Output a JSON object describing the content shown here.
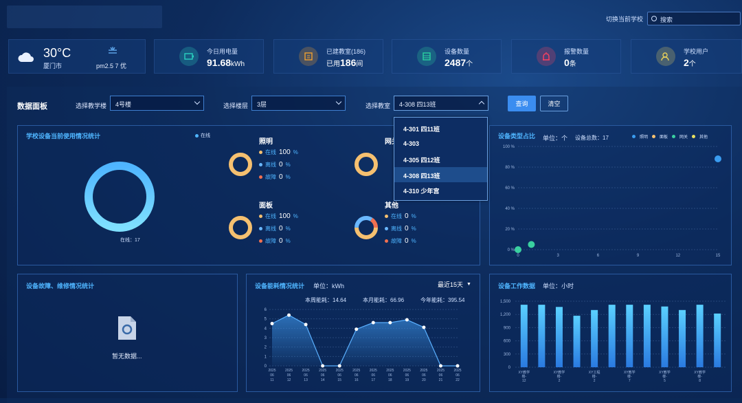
{
  "header": {
    "switch_label": "切换当前学校",
    "search_placeholder": "搜索"
  },
  "weather": {
    "temp": "30°C",
    "city": "厦门市",
    "aqi": "pm2.5 7 优",
    "icon": "cloud-icon",
    "aqi_icon": "air-icon"
  },
  "kpis": [
    {
      "label": "今日用电量",
      "value": "91.68",
      "unit": "kWh",
      "icon": "battery-icon",
      "color": "#2ad1c0"
    },
    {
      "label": "已建教室(186)",
      "value": "186",
      "prefix": "已用",
      "unit": "间",
      "icon": "classroom-icon",
      "color": "#f0a030"
    },
    {
      "label": "设备数量",
      "value": "2487",
      "unit": "个",
      "icon": "device-icon",
      "color": "#2ad1a0"
    },
    {
      "label": "报警数量",
      "value": "0",
      "unit": "条",
      "icon": "alarm-icon",
      "color": "#ff4060"
    },
    {
      "label": "学校用户",
      "value": "2",
      "unit": "个",
      "icon": "users-icon",
      "color": "#e8d05a"
    }
  ],
  "filters": {
    "title": "数据面板",
    "building_label": "选择教学楼",
    "building_value": "4号楼",
    "floor_label": "选择楼层",
    "floor_value": "3层",
    "room_label": "选择教室",
    "room_value": "4-308 四13班",
    "query_button": "查询",
    "clear_button": "清空"
  },
  "dropdown": {
    "options": [
      "4-301 四11班",
      "4-303",
      "4-305 四12班",
      "4-308 四13班",
      "4-310 少年宫"
    ],
    "active_index": 3
  },
  "usage": {
    "title": "学校设备当前使用情况统计",
    "legend": "在线",
    "donut_label": "在线：17",
    "groups": [
      {
        "name": "照明",
        "online": "100",
        "offline": "0",
        "fault": "0"
      },
      {
        "name": "网关",
        "online": "",
        "offline": "",
        "fault": ""
      },
      {
        "name": "面板",
        "online": "100",
        "offline": "0",
        "fault": "0"
      },
      {
        "name": "其他",
        "online": "0",
        "offline": "0",
        "fault": "0"
      }
    ],
    "row_labels": {
      "online": "在线",
      "offline": "离线",
      "fault": "故障",
      "pct": "%"
    }
  },
  "device_type": {
    "title": "设备类型占比",
    "unit": "单位：个",
    "total": "设备总数：17",
    "legend": [
      "照明",
      "面板",
      "网关",
      "其他"
    ],
    "legend_colors": [
      "#3a9cf0",
      "#f5c070",
      "#3ad0a0",
      "#e8e060"
    ]
  },
  "fault": {
    "title": "设备故障、维修情况统计",
    "empty": "暂无数据..."
  },
  "energy": {
    "title": "设备能耗情况统计",
    "unit": "单位：kWh",
    "range": "最近15天",
    "week": "本周能耗：14.64",
    "month": "本月能耗：66.96",
    "year": "今年能耗：395.54"
  },
  "work": {
    "title": "设备工作数据",
    "unit": "单位：小时"
  },
  "chart_data": [
    {
      "type": "pie",
      "title": "学校设备当前使用情况统计",
      "categories": [
        "在线"
      ],
      "values": [
        17
      ]
    },
    {
      "type": "scatter",
      "title": "设备类型占比",
      "xlim": [
        0,
        15
      ],
      "ylim": [
        0,
        100
      ],
      "yticks": [
        "0 %",
        "20 %",
        "40 %",
        "60 %",
        "80 %",
        "100 %"
      ],
      "xticks": [
        "0",
        "3",
        "6",
        "9",
        "12",
        "15"
      ],
      "series": [
        {
          "name": "照明",
          "x": [
            15
          ],
          "y": [
            88
          ]
        },
        {
          "name": "网关",
          "x": [
            0,
            1
          ],
          "y": [
            0,
            5
          ]
        }
      ]
    },
    {
      "type": "area",
      "title": "设备能耗情况统计",
      "x": [
        "2025-06-11",
        "2025-06-12",
        "2025-06-13",
        "2025-06-14",
        "2025-06-15",
        "2025-06-16",
        "2025-06-17",
        "2025-06-18",
        "2025-06-19",
        "2025-06-20",
        "2025-06-21",
        "2025-06-22"
      ],
      "values": [
        4.5,
        5.4,
        4.4,
        0,
        0,
        3.9,
        4.6,
        4.6,
        4.9,
        4.1,
        0,
        0
      ],
      "ylim": [
        0,
        6
      ],
      "yticks": [
        "0",
        "1",
        "2",
        "3",
        "4",
        "5",
        "6"
      ]
    },
    {
      "type": "bar",
      "title": "设备工作数据",
      "ylim": [
        0,
        1500
      ],
      "yticks": [
        "0",
        "300",
        "600",
        "900",
        "1,200",
        "1,500"
      ],
      "values": [
        1420,
        1420,
        1370,
        1170,
        1300,
        1420,
        1420,
        1420,
        1380,
        1300,
        1420,
        1220
      ],
      "xlabels": [
        [
          "XY教学",
          "楼-",
          "12"
        ],
        [
          "XY教学",
          "楼-",
          "2"
        ],
        [
          "XY工程",
          "楼-",
          "2"
        ],
        [
          "XY教学",
          "楼-",
          "7"
        ],
        [
          "XY教学",
          "楼-",
          "5"
        ],
        [
          "XY教学",
          "楼-",
          "8"
        ]
      ]
    }
  ]
}
